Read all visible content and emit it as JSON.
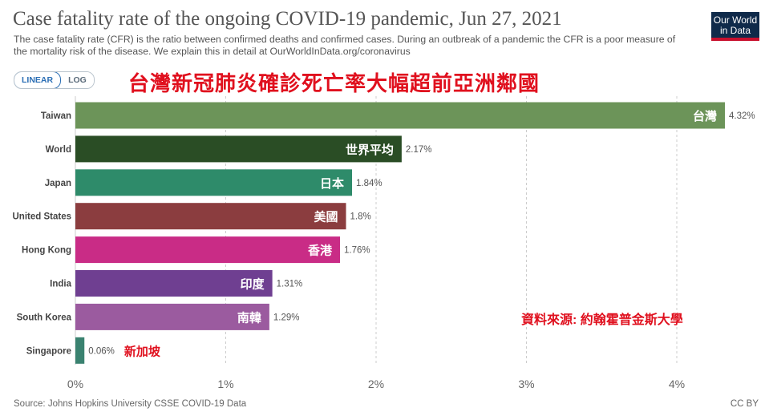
{
  "header": {
    "title": "Case fatality rate of the ongoing COVID-19 pandemic, Jun 27, 2021",
    "subtitle": "The case fatality rate (CFR) is the ratio between confirmed deaths and confirmed cases. During an outbreak of a pandemic the CFR is a poor measure of the mortality risk of the disease. We explain this in detail at OurWorldInData.org/coronavirus",
    "logo_line1": "Our World",
    "logo_line2": "in Data"
  },
  "controls": {
    "linear_label": "LINEAR",
    "log_label": "LOG",
    "selected": "LINEAR"
  },
  "annotations": {
    "headline": "台灣新冠肺炎確診死亡率大幅超前亞洲鄰國",
    "source_note": "資料來源: 約翰霍普金斯大學"
  },
  "footer": {
    "source": "Source: Johns Hopkins University CSSE COVID-19 Data",
    "license": "CC BY"
  },
  "chart_data": {
    "type": "bar",
    "orientation": "horizontal",
    "categories": [
      "Taiwan",
      "World",
      "Japan",
      "United States",
      "Hong Kong",
      "India",
      "South Korea",
      "Singapore"
    ],
    "values": [
      4.32,
      2.17,
      1.84,
      1.8,
      1.76,
      1.31,
      1.29,
      0.06
    ],
    "value_labels": [
      "4.32%",
      "2.17%",
      "1.84%",
      "1.8%",
      "1.76%",
      "1.31%",
      "1.29%",
      "0.06%"
    ],
    "bar_annotations": [
      "台灣",
      "世界平均",
      "日本",
      "美國",
      "香港",
      "印度",
      "南韓",
      "新加坡"
    ],
    "colors": [
      "#6c9459",
      "#2a4d25",
      "#2e8b6a",
      "#8b3d3f",
      "#c92c86",
      "#6f3f91",
      "#9b5b9f",
      "#3a8270"
    ],
    "x_ticks": [
      "0%",
      "1%",
      "2%",
      "3%",
      "4%"
    ],
    "xlim": [
      0,
      4.4
    ],
    "grid": true,
    "annotation_color": "#e0101e"
  }
}
